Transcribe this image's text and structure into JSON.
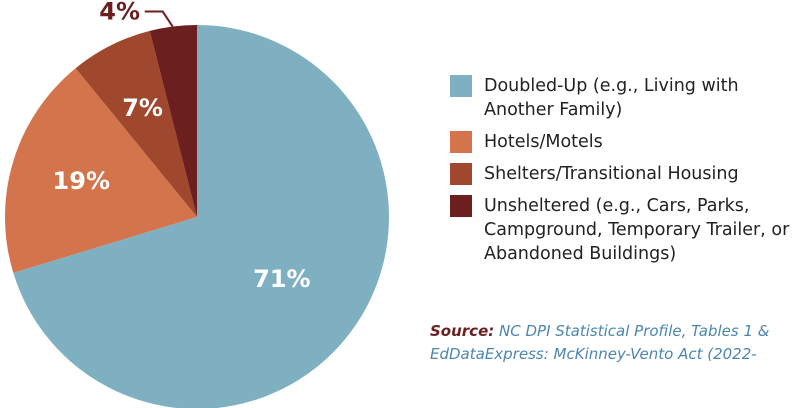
{
  "chart_data": {
    "type": "pie",
    "categories": [
      "Doubled-Up (e.g., Living with Another Family)",
      "Hotels/Motels",
      "Shelters/Transitional Housing",
      "Unsheltered (e.g., Cars, Parks, Campground, Temporary Trailer, or Abandoned Buildings)"
    ],
    "values": [
      71,
      19,
      7,
      4
    ],
    "value_labels": [
      "71%",
      "19%",
      "7%",
      "4%"
    ],
    "colors": [
      "#7fb0c2",
      "#d4744c",
      "#a0482e",
      "#6b1f1f"
    ],
    "source": {
      "label": "Source:",
      "lines": [
        "NC DPI Statistical Profile, Tables 1 &",
        "EdDataExpress: McKinney-Vento Act (2022-"
      ]
    }
  }
}
